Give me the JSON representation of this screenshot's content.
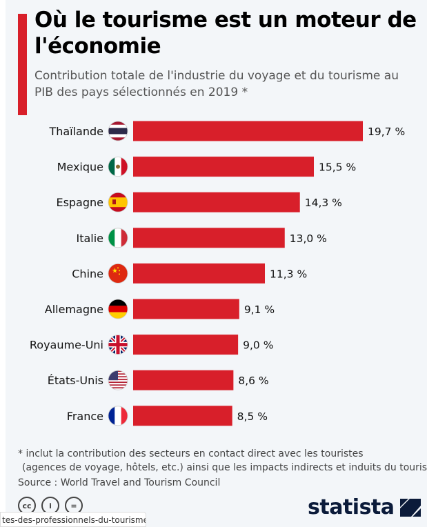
{
  "title": "Où le tourisme est un moteur de l'économie",
  "subtitle": "Contribution totale de l'industrie du voyage et du tourisme au PIB des pays sélectionnés en 2019 *",
  "chart_data": {
    "type": "bar",
    "orientation": "horizontal",
    "categories": [
      "Thaïlande",
      "Mexique",
      "Espagne",
      "Italie",
      "Chine",
      "Allemagne",
      "Royaume-Uni",
      "États-Unis",
      "France"
    ],
    "values": [
      19.7,
      15.5,
      14.3,
      13.0,
      11.3,
      9.1,
      9.0,
      8.6,
      8.5
    ],
    "data_labels": [
      "19,7 %",
      "15,5 %",
      "14,3 %",
      "13,0 %",
      "11,3 %",
      "9,1 %",
      "9,0 %",
      "8,6 %",
      "8,5 %"
    ],
    "bar_color": "#d81f2a",
    "unit": "%",
    "grid": false
  },
  "notes": {
    "footnote_line1": "* inclut la contribution des secteurs en contact direct avec les touristes",
    "footnote_line2": "(agences de voyage, hôtels, etc.) ainsi que les impacts indirects et induits du tourisme.",
    "source": "Source : World Travel and Tourism Council"
  },
  "license_icons": [
    "cc",
    "by",
    "nd"
  ],
  "brand": "statista",
  "status_url": "tes-des-professionnels-du-tourisme_a..."
}
